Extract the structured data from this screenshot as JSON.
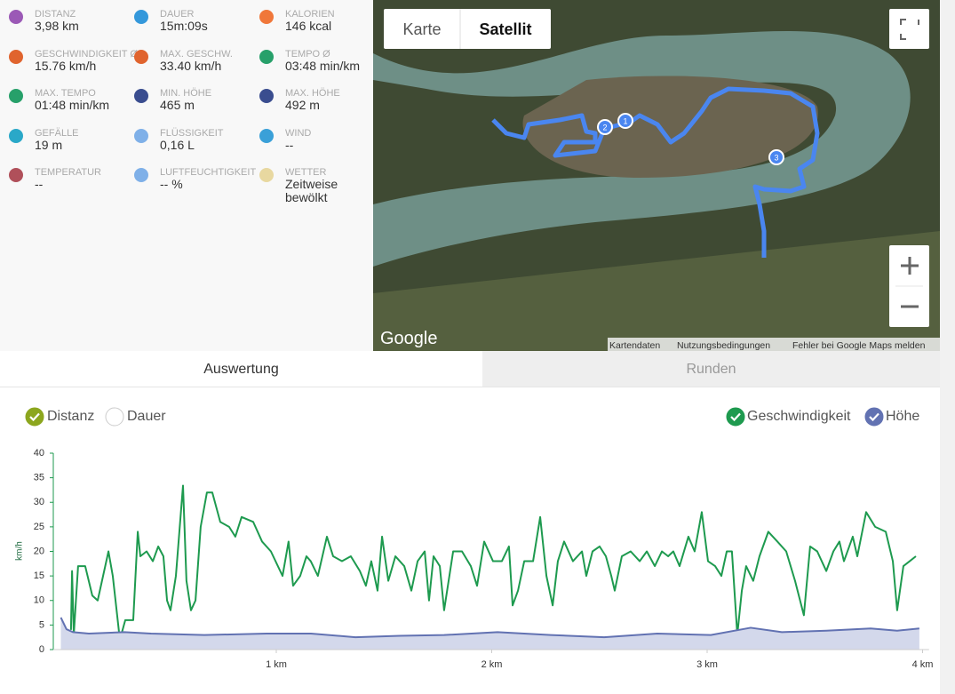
{
  "stats": [
    {
      "label": "DISTANZ",
      "value": "3,98 km"
    },
    {
      "label": "DAUER",
      "value": "15m:09s"
    },
    {
      "label": "KALORIEN",
      "value": "146 kcal"
    },
    {
      "label": "GESCHWINDIGKEIT Ø",
      "value": "15.76 km/h"
    },
    {
      "label": "MAX. GESCHW.",
      "value": "33.40 km/h"
    },
    {
      "label": "TEMPO Ø",
      "value": "03:48 min/km"
    },
    {
      "label": "MAX. TEMPO",
      "value": "01:48 min/km"
    },
    {
      "label": "MIN. HÖHE",
      "value": "465 m"
    },
    {
      "label": "MAX. HÖHE",
      "value": "492 m"
    },
    {
      "label": "GEFÄLLE",
      "value": "19 m"
    },
    {
      "label": "FLÜSSIGKEIT",
      "value": "0,16 L"
    },
    {
      "label": "WIND",
      "value": "--"
    },
    {
      "label": "TEMPERATUR",
      "value": "--"
    },
    {
      "label": "LUFTFEUCHTIGKEIT",
      "value": "-- %"
    },
    {
      "label": "WETTER",
      "value": "Zeitweise bewölkt"
    }
  ],
  "map": {
    "buttons": [
      "Karte",
      "Satellit"
    ],
    "logo": "Google",
    "markers": [
      "1",
      "2",
      "3"
    ],
    "footer": [
      "Kartendaten",
      "Nutzungsbedingungen",
      "Fehler bei Google Maps melden"
    ]
  },
  "tabs": [
    "Auswertung",
    "Runden"
  ],
  "chart_data": {
    "type": "line",
    "y_label": "km/h",
    "x_modes": [
      {
        "name": "Distanz",
        "checked": true,
        "color": "#8ca61e"
      },
      {
        "name": "Dauer",
        "checked": false,
        "color": "#8ca61e"
      }
    ],
    "xlim": [
      0,
      4.03
    ],
    "xticks": [
      {
        "value": 1,
        "label": "1 km"
      },
      {
        "value": 2,
        "label": "2 km"
      },
      {
        "value": 3,
        "label": "3 km"
      },
      {
        "value": 4,
        "label": "4 km"
      }
    ],
    "ylim": [
      0,
      40
    ],
    "yticks": [
      0,
      5,
      10,
      15,
      20,
      25,
      30,
      35,
      40
    ],
    "y2lim": [
      448,
      718
    ],
    "series": [
      {
        "name": "Geschwindigkeit",
        "color": "#1e9a4f",
        "checked": true,
        "x": [
          0.047,
          0.052,
          0.06,
          0.08,
          0.113,
          0.146,
          0.171,
          0.221,
          0.241,
          0.274,
          0.299,
          0.336,
          0.357,
          0.369,
          0.398,
          0.427,
          0.452,
          0.476,
          0.493,
          0.509,
          0.534,
          0.567,
          0.583,
          0.604,
          0.625,
          0.649,
          0.678,
          0.703,
          0.74,
          0.781,
          0.81,
          0.839,
          0.893,
          0.934,
          0.975,
          1.029,
          1.057,
          1.078,
          1.111,
          1.14,
          1.16,
          1.193,
          1.235,
          1.264,
          1.305,
          1.346,
          1.388,
          1.416,
          1.441,
          1.47,
          1.491,
          1.52,
          1.553,
          1.594,
          1.627,
          1.656,
          1.689,
          1.709,
          1.73,
          1.759,
          1.779,
          1.821,
          1.862,
          1.903,
          1.932,
          1.965,
          2.006,
          2.047,
          2.08,
          2.097,
          2.122,
          2.151,
          2.192,
          2.225,
          2.254,
          2.283,
          2.307,
          2.336,
          2.377,
          2.419,
          2.439,
          2.468,
          2.501,
          2.53,
          2.555,
          2.571,
          2.604,
          2.645,
          2.687,
          2.72,
          2.757,
          2.79,
          2.819,
          2.843,
          2.872,
          2.913,
          2.942,
          2.975,
          3.004,
          3.037,
          3.066,
          3.091,
          3.115,
          3.14,
          3.161,
          3.181,
          3.214,
          3.243,
          3.284,
          3.326,
          3.367,
          3.408,
          3.449,
          3.478,
          3.511,
          3.553,
          3.586,
          3.614,
          3.635,
          3.676,
          3.697,
          3.738,
          3.78,
          3.829,
          3.862,
          3.882,
          3.911,
          3.94,
          3.969
        ],
        "values": [
          4,
          16,
          3,
          17,
          17,
          11,
          10,
          20,
          15,
          2,
          6,
          6,
          24,
          19,
          20,
          18,
          21,
          19,
          10,
          8,
          15,
          33.4,
          14,
          8,
          10,
          25,
          32,
          32,
          26,
          25,
          23,
          27,
          26,
          22,
          20,
          15,
          22,
          13,
          15,
          19,
          18,
          15,
          23,
          19,
          18,
          19,
          16,
          13,
          18,
          12,
          23,
          14,
          19,
          17,
          12,
          18,
          20,
          10,
          19,
          17,
          8,
          20,
          20,
          17,
          13,
          22,
          18,
          18,
          21,
          9,
          12,
          18,
          18,
          27,
          15,
          9,
          18,
          22,
          18,
          20,
          15,
          20,
          21,
          19,
          15,
          12,
          19,
          20,
          18,
          20,
          17,
          20,
          19,
          20,
          17,
          23,
          20,
          28,
          18,
          17,
          15,
          20,
          20,
          3,
          12,
          17,
          14,
          19,
          24,
          22,
          20,
          14,
          7,
          21,
          20,
          16,
          20,
          22,
          18,
          23,
          19,
          28,
          25,
          24,
          18,
          8,
          17,
          18,
          19
        ]
      },
      {
        "name": "Höhe",
        "color": "#6272b2",
        "checked": true,
        "axis": "y2",
        "fill": "#d3d8eb",
        "x": [
          0,
          0.026,
          0.056,
          0.13,
          0.295,
          0.419,
          0.666,
          0.955,
          1.161,
          1.367,
          1.573,
          1.779,
          2.027,
          2.274,
          2.522,
          2.769,
          3.017,
          3.202,
          3.347,
          3.553,
          3.759,
          3.882,
          3.985
        ],
        "values": [
          492,
          476,
          472,
          470,
          472,
          470,
          468,
          470,
          470,
          465,
          467,
          468,
          472,
          468,
          465,
          470,
          468,
          478,
          472,
          474,
          477,
          474,
          477
        ]
      }
    ]
  }
}
